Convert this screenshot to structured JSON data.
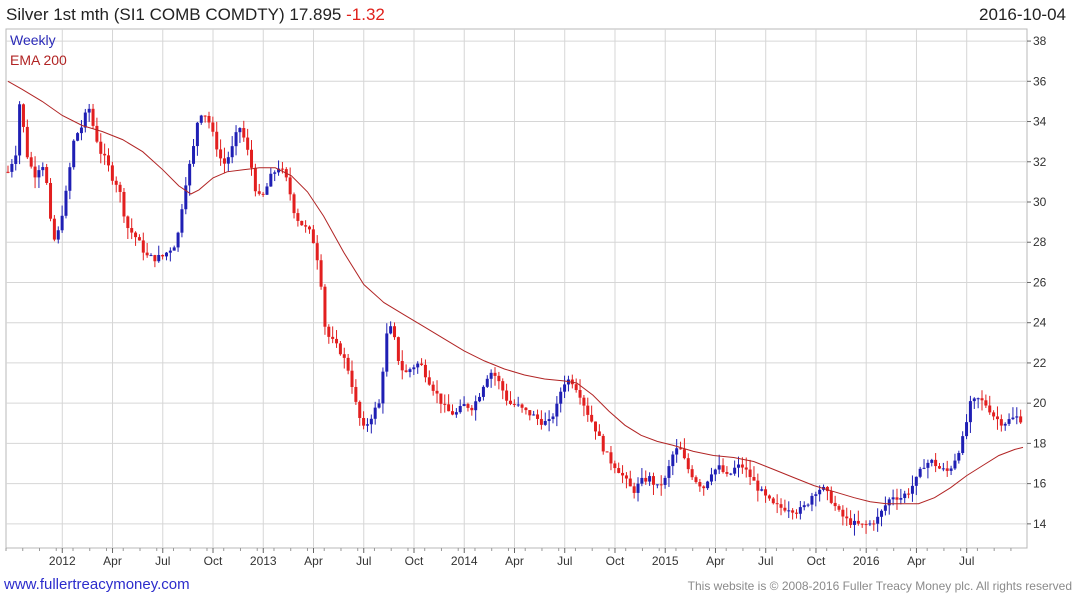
{
  "header": {
    "title": "Silver 1st mth (SI1 COMB COMDTY)",
    "last": "17.895",
    "change": "-1.32",
    "date": "2016-10-04"
  },
  "footer": {
    "site": "www.fullertreacymoney.com",
    "copyright": "This website is © 2008-2016 Fuller Treacy Money plc. All rights reserved"
  },
  "chart_data": {
    "type": "candlestick",
    "title": "Silver 1st mth (SI1 COMB COMDTY)",
    "periodicity": "Weekly",
    "legend": [
      "Weekly",
      "EMA 200"
    ],
    "legend_position": "top-left",
    "ylim": [
      12.8,
      38.6
    ],
    "xlim": [
      2011.72,
      2016.8
    ],
    "yticks": [
      14,
      16,
      18,
      20,
      22,
      24,
      26,
      28,
      30,
      32,
      34,
      36,
      38
    ],
    "x_tick_labels": [
      {
        "t": 2012.0,
        "label": "2012"
      },
      {
        "t": 2012.25,
        "label": "Apr"
      },
      {
        "t": 2012.5,
        "label": "Jul"
      },
      {
        "t": 2012.75,
        "label": "Oct"
      },
      {
        "t": 2013.0,
        "label": "2013"
      },
      {
        "t": 2013.25,
        "label": "Apr"
      },
      {
        "t": 2013.5,
        "label": "Jul"
      },
      {
        "t": 2013.75,
        "label": "Oct"
      },
      {
        "t": 2014.0,
        "label": "2014"
      },
      {
        "t": 2014.25,
        "label": "Apr"
      },
      {
        "t": 2014.5,
        "label": "Jul"
      },
      {
        "t": 2014.75,
        "label": "Oct"
      },
      {
        "t": 2015.0,
        "label": "2015"
      },
      {
        "t": 2015.25,
        "label": "Apr"
      },
      {
        "t": 2015.5,
        "label": "Jul"
      },
      {
        "t": 2015.75,
        "label": "Oct"
      },
      {
        "t": 2016.0,
        "label": "2016"
      },
      {
        "t": 2016.25,
        "label": "Apr"
      },
      {
        "t": 2016.5,
        "label": "Jul"
      }
    ],
    "close_anchors": [
      [
        2011.73,
        31.5
      ],
      [
        2011.77,
        32.5
      ],
      [
        2011.79,
        35.2
      ],
      [
        2011.82,
        32.5
      ],
      [
        2011.86,
        31.3
      ],
      [
        2011.9,
        32.0
      ],
      [
        2011.93,
        30.5
      ],
      [
        2011.95,
        27.9
      ],
      [
        2011.98,
        28.5
      ],
      [
        2012.02,
        30.5
      ],
      [
        2012.06,
        33.2
      ],
      [
        2012.1,
        33.8
      ],
      [
        2012.13,
        34.8
      ],
      [
        2012.16,
        33.5
      ],
      [
        2012.19,
        32.5
      ],
      [
        2012.22,
        32.0
      ],
      [
        2012.25,
        31.2
      ],
      [
        2012.28,
        30.8
      ],
      [
        2012.32,
        28.8
      ],
      [
        2012.37,
        28.2
      ],
      [
        2012.42,
        27.3
      ],
      [
        2012.46,
        27.2
      ],
      [
        2012.5,
        27.3
      ],
      [
        2012.53,
        27.6
      ],
      [
        2012.57,
        28.0
      ],
      [
        2012.61,
        30.8
      ],
      [
        2012.65,
        32.5
      ],
      [
        2012.68,
        34.5
      ],
      [
        2012.72,
        34.3
      ],
      [
        2012.76,
        33.0
      ],
      [
        2012.8,
        31.8
      ],
      [
        2012.84,
        32.5
      ],
      [
        2012.88,
        33.8
      ],
      [
        2012.91,
        33.0
      ],
      [
        2012.94,
        31.8
      ],
      [
        2012.97,
        30.2
      ],
      [
        2013.0,
        30.3
      ],
      [
        2013.04,
        31.3
      ],
      [
        2013.08,
        31.8
      ],
      [
        2013.12,
        31.0
      ],
      [
        2013.16,
        29.3
      ],
      [
        2013.2,
        28.8
      ],
      [
        2013.23,
        28.5
      ],
      [
        2013.26,
        27.8
      ],
      [
        2013.29,
        25.8
      ],
      [
        2013.31,
        23.5
      ],
      [
        2013.35,
        23.0
      ],
      [
        2013.39,
        22.5
      ],
      [
        2013.43,
        21.5
      ],
      [
        2013.47,
        19.5
      ],
      [
        2013.5,
        18.7
      ],
      [
        2013.53,
        19.2
      ],
      [
        2013.55,
        19.6
      ],
      [
        2013.58,
        20.0
      ],
      [
        2013.61,
        23.3
      ],
      [
        2013.64,
        23.8
      ],
      [
        2013.68,
        21.8
      ],
      [
        2013.71,
        21.5
      ],
      [
        2013.74,
        21.8
      ],
      [
        2013.78,
        22.0
      ],
      [
        2013.82,
        21.2
      ],
      [
        2013.86,
        20.5
      ],
      [
        2013.9,
        19.8
      ],
      [
        2013.93,
        19.5
      ],
      [
        2013.96,
        19.5
      ],
      [
        2014.0,
        19.9
      ],
      [
        2014.04,
        19.8
      ],
      [
        2014.07,
        20.3
      ],
      [
        2014.11,
        21.3
      ],
      [
        2014.14,
        21.6
      ],
      [
        2014.18,
        20.9
      ],
      [
        2014.22,
        20.0
      ],
      [
        2014.26,
        19.9
      ],
      [
        2014.3,
        19.6
      ],
      [
        2014.34,
        19.4
      ],
      [
        2014.38,
        19.1
      ],
      [
        2014.42,
        19.0
      ],
      [
        2014.46,
        19.8
      ],
      [
        2014.49,
        21.0
      ],
      [
        2014.53,
        21.2
      ],
      [
        2014.57,
        20.6
      ],
      [
        2014.61,
        19.6
      ],
      [
        2014.65,
        18.8
      ],
      [
        2014.69,
        17.8
      ],
      [
        2014.72,
        17.2
      ],
      [
        2014.76,
        16.8
      ],
      [
        2014.8,
        16.2
      ],
      [
        2014.84,
        15.6
      ],
      [
        2014.88,
        16.1
      ],
      [
        2014.92,
        16.3
      ],
      [
        2014.96,
        15.8
      ],
      [
        2015.0,
        16.2
      ],
      [
        2015.04,
        17.5
      ],
      [
        2015.07,
        17.8
      ],
      [
        2015.11,
        16.8
      ],
      [
        2015.15,
        16.2
      ],
      [
        2015.19,
        15.8
      ],
      [
        2015.23,
        16.6
      ],
      [
        2015.27,
        16.8
      ],
      [
        2015.31,
        16.3
      ],
      [
        2015.35,
        16.8
      ],
      [
        2015.38,
        16.9
      ],
      [
        2015.42,
        16.4
      ],
      [
        2015.46,
        15.8
      ],
      [
        2015.5,
        15.3
      ],
      [
        2015.54,
        14.9
      ],
      [
        2015.58,
        14.8
      ],
      [
        2015.62,
        14.8
      ],
      [
        2015.66,
        14.6
      ],
      [
        2015.7,
        14.9
      ],
      [
        2015.74,
        15.6
      ],
      [
        2015.78,
        15.8
      ],
      [
        2015.82,
        15.3
      ],
      [
        2015.86,
        14.6
      ],
      [
        2015.9,
        14.2
      ],
      [
        2015.94,
        14.0
      ],
      [
        2015.98,
        13.9
      ],
      [
        2016.02,
        14.0
      ],
      [
        2016.06,
        14.3
      ],
      [
        2016.1,
        15.0
      ],
      [
        2016.13,
        15.4
      ],
      [
        2016.17,
        15.3
      ],
      [
        2016.21,
        15.6
      ],
      [
        2016.25,
        16.2
      ],
      [
        2016.29,
        17.0
      ],
      [
        2016.33,
        17.1
      ],
      [
        2016.37,
        16.7
      ],
      [
        2016.41,
        16.6
      ],
      [
        2016.45,
        17.4
      ],
      [
        2016.48,
        18.2
      ],
      [
        2016.52,
        20.0
      ],
      [
        2016.56,
        20.2
      ],
      [
        2016.6,
        19.9
      ],
      [
        2016.64,
        19.3
      ],
      [
        2016.68,
        19.0
      ],
      [
        2016.72,
        19.2
      ],
      [
        2016.75,
        19.3
      ],
      [
        2016.77,
        19.2
      ],
      [
        2016.78,
        17.9
      ]
    ],
    "ema200": [
      [
        2011.73,
        36.0
      ],
      [
        2011.8,
        35.6
      ],
      [
        2011.9,
        35.0
      ],
      [
        2012.0,
        34.3
      ],
      [
        2012.1,
        33.8
      ],
      [
        2012.2,
        33.5
      ],
      [
        2012.3,
        33.1
      ],
      [
        2012.4,
        32.5
      ],
      [
        2012.5,
        31.6
      ],
      [
        2012.58,
        30.8
      ],
      [
        2012.64,
        30.4
      ],
      [
        2012.68,
        30.6
      ],
      [
        2012.75,
        31.2
      ],
      [
        2012.82,
        31.5
      ],
      [
        2012.9,
        31.6
      ],
      [
        2012.98,
        31.7
      ],
      [
        2013.06,
        31.7
      ],
      [
        2013.14,
        31.3
      ],
      [
        2013.22,
        30.5
      ],
      [
        2013.3,
        29.3
      ],
      [
        2013.4,
        27.5
      ],
      [
        2013.5,
        25.9
      ],
      [
        2013.6,
        25.0
      ],
      [
        2013.7,
        24.4
      ],
      [
        2013.8,
        23.8
      ],
      [
        2013.9,
        23.2
      ],
      [
        2014.0,
        22.6
      ],
      [
        2014.1,
        22.1
      ],
      [
        2014.2,
        21.7
      ],
      [
        2014.3,
        21.4
      ],
      [
        2014.4,
        21.2
      ],
      [
        2014.5,
        21.1
      ],
      [
        2014.56,
        21.0
      ],
      [
        2014.64,
        20.4
      ],
      [
        2014.72,
        19.6
      ],
      [
        2014.8,
        18.9
      ],
      [
        2014.88,
        18.4
      ],
      [
        2014.96,
        18.1
      ],
      [
        2015.04,
        17.9
      ],
      [
        2015.14,
        17.6
      ],
      [
        2015.24,
        17.4
      ],
      [
        2015.34,
        17.3
      ],
      [
        2015.44,
        17.1
      ],
      [
        2015.54,
        16.7
      ],
      [
        2015.64,
        16.3
      ],
      [
        2015.74,
        15.9
      ],
      [
        2015.84,
        15.6
      ],
      [
        2015.94,
        15.3
      ],
      [
        2016.02,
        15.1
      ],
      [
        2016.1,
        15.0
      ],
      [
        2016.18,
        15.0
      ],
      [
        2016.26,
        15.0
      ],
      [
        2016.34,
        15.3
      ],
      [
        2016.42,
        15.8
      ],
      [
        2016.5,
        16.4
      ],
      [
        2016.58,
        16.9
      ],
      [
        2016.66,
        17.4
      ],
      [
        2016.74,
        17.7
      ],
      [
        2016.78,
        17.8
      ]
    ]
  }
}
